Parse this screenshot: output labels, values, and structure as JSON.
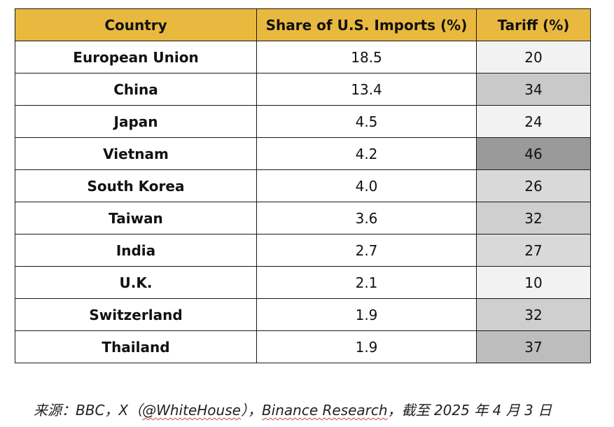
{
  "table": {
    "headers": [
      "Country",
      "Share of U.S. Imports (%)",
      "Tariff (%)"
    ],
    "rows": [
      {
        "country": "European Union",
        "share": "18.5",
        "tariff": "20",
        "tariff_bg": "#f2f2f2"
      },
      {
        "country": "China",
        "share": "13.4",
        "tariff": "34",
        "tariff_bg": "#c9c9c9"
      },
      {
        "country": "Japan",
        "share": "4.5",
        "tariff": "24",
        "tariff_bg": "#f2f2f2"
      },
      {
        "country": "Vietnam",
        "share": "4.2",
        "tariff": "46",
        "tariff_bg": "#9a9a9a"
      },
      {
        "country": "South Korea",
        "share": "4.0",
        "tariff": "26",
        "tariff_bg": "#d9d9d9"
      },
      {
        "country": "Taiwan",
        "share": "3.6",
        "tariff": "32",
        "tariff_bg": "#cfcfcf"
      },
      {
        "country": "India",
        "share": "2.7",
        "tariff": "27",
        "tariff_bg": "#d9d9d9"
      },
      {
        "country": "U.K.",
        "share": "2.1",
        "tariff": "10",
        "tariff_bg": "#f2f2f2"
      },
      {
        "country": "Switzerland",
        "share": "1.9",
        "tariff": "32",
        "tariff_bg": "#cfcfcf"
      },
      {
        "country": "Thailand",
        "share": "1.9",
        "tariff": "37",
        "tariff_bg": "#bdbdbd"
      }
    ],
    "header_bg": "#e9b93f"
  },
  "footer": {
    "prefix": "来源：BBC，X（",
    "handle": "@WhiteHouse",
    "mid": "），",
    "source": "Binance Research",
    "suffix": "，截至 2025 年 4 月 3 日"
  }
}
